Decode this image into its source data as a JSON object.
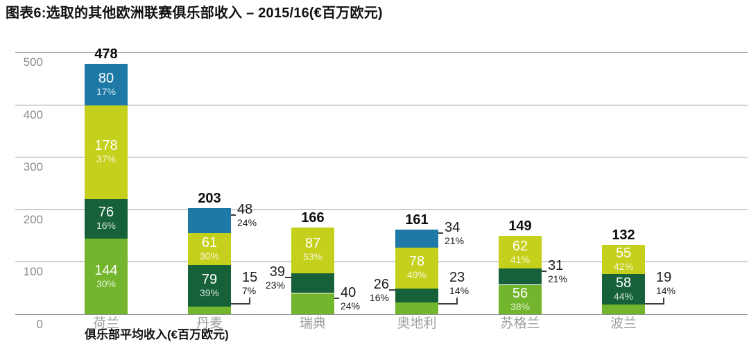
{
  "chart_data": {
    "type": "bar",
    "stacked": true,
    "title": "图表6:选取的其他欧洲联赛俱乐部收入 – 2015/16(€百万欧元)",
    "xlabel": "俱乐部平均收入(€百万欧元)",
    "ylim": [
      0,
      500
    ],
    "yticks": [
      0,
      100,
      200,
      300,
      400,
      500
    ],
    "grid": true,
    "legend": "none",
    "colors": {
      "blue": "#1e79a7",
      "lime": "#c5d01c",
      "darkgreen": "#16613a",
      "green": "#73b52c"
    },
    "categories": [
      "荷兰",
      "丹麦",
      "瑞典",
      "奥地利",
      "苏格兰",
      "波兰"
    ],
    "totals": [
      478,
      203,
      166,
      161,
      149,
      132
    ],
    "bars": [
      {
        "category": "荷兰",
        "total": 478,
        "segments": [
          {
            "value": 144,
            "pct": "30%",
            "color": "green",
            "label": "inside"
          },
          {
            "value": 76,
            "pct": "16%",
            "color": "darkgreen",
            "label": "inside"
          },
          {
            "value": 178,
            "pct": "37%",
            "color": "lime",
            "label": "inside"
          },
          {
            "value": 80,
            "pct": "17%",
            "color": "blue",
            "label": "inside"
          }
        ]
      },
      {
        "category": "丹麦",
        "total": 203,
        "segments": [
          {
            "value": 15,
            "pct": "7%",
            "color": "green",
            "label": "right-elbow"
          },
          {
            "value": 79,
            "pct": "39%",
            "color": "darkgreen",
            "label": "inside"
          },
          {
            "value": 61,
            "pct": "30%",
            "color": "lime",
            "label": "inside"
          },
          {
            "value": 48,
            "pct": "24%",
            "color": "blue",
            "label": "right"
          }
        ]
      },
      {
        "category": "瑞典",
        "total": 166,
        "segments": [
          {
            "value": 40,
            "pct": "24%",
            "color": "green",
            "label": "right"
          },
          {
            "value": 39,
            "pct": "23%",
            "color": "darkgreen",
            "label": "left"
          },
          {
            "value": 87,
            "pct": "53%",
            "color": "lime",
            "label": "inside"
          }
        ]
      },
      {
        "category": "奥地利",
        "total": 161,
        "segments": [
          {
            "value": 23,
            "pct": "14%",
            "color": "green",
            "label": "right-elbow"
          },
          {
            "value": 26,
            "pct": "16%",
            "color": "darkgreen",
            "label": "left"
          },
          {
            "value": 78,
            "pct": "49%",
            "color": "lime",
            "label": "inside"
          },
          {
            "value": 34,
            "pct": "21%",
            "color": "blue",
            "label": "right"
          }
        ]
      },
      {
        "category": "苏格兰",
        "total": 149,
        "segments": [
          {
            "value": 56,
            "pct": "38%",
            "color": "green",
            "label": "inside"
          },
          {
            "value": 31,
            "pct": "21%",
            "color": "darkgreen",
            "label": "right"
          },
          {
            "value": 62,
            "pct": "41%",
            "color": "lime",
            "label": "inside"
          }
        ]
      },
      {
        "category": "波兰",
        "total": 132,
        "segments": [
          {
            "value": 19,
            "pct": "14%",
            "color": "green",
            "label": "right-elbow"
          },
          {
            "value": 58,
            "pct": "44%",
            "color": "darkgreen",
            "label": "inside"
          },
          {
            "value": 55,
            "pct": "42%",
            "color": "lime",
            "label": "inside"
          }
        ]
      }
    ]
  }
}
